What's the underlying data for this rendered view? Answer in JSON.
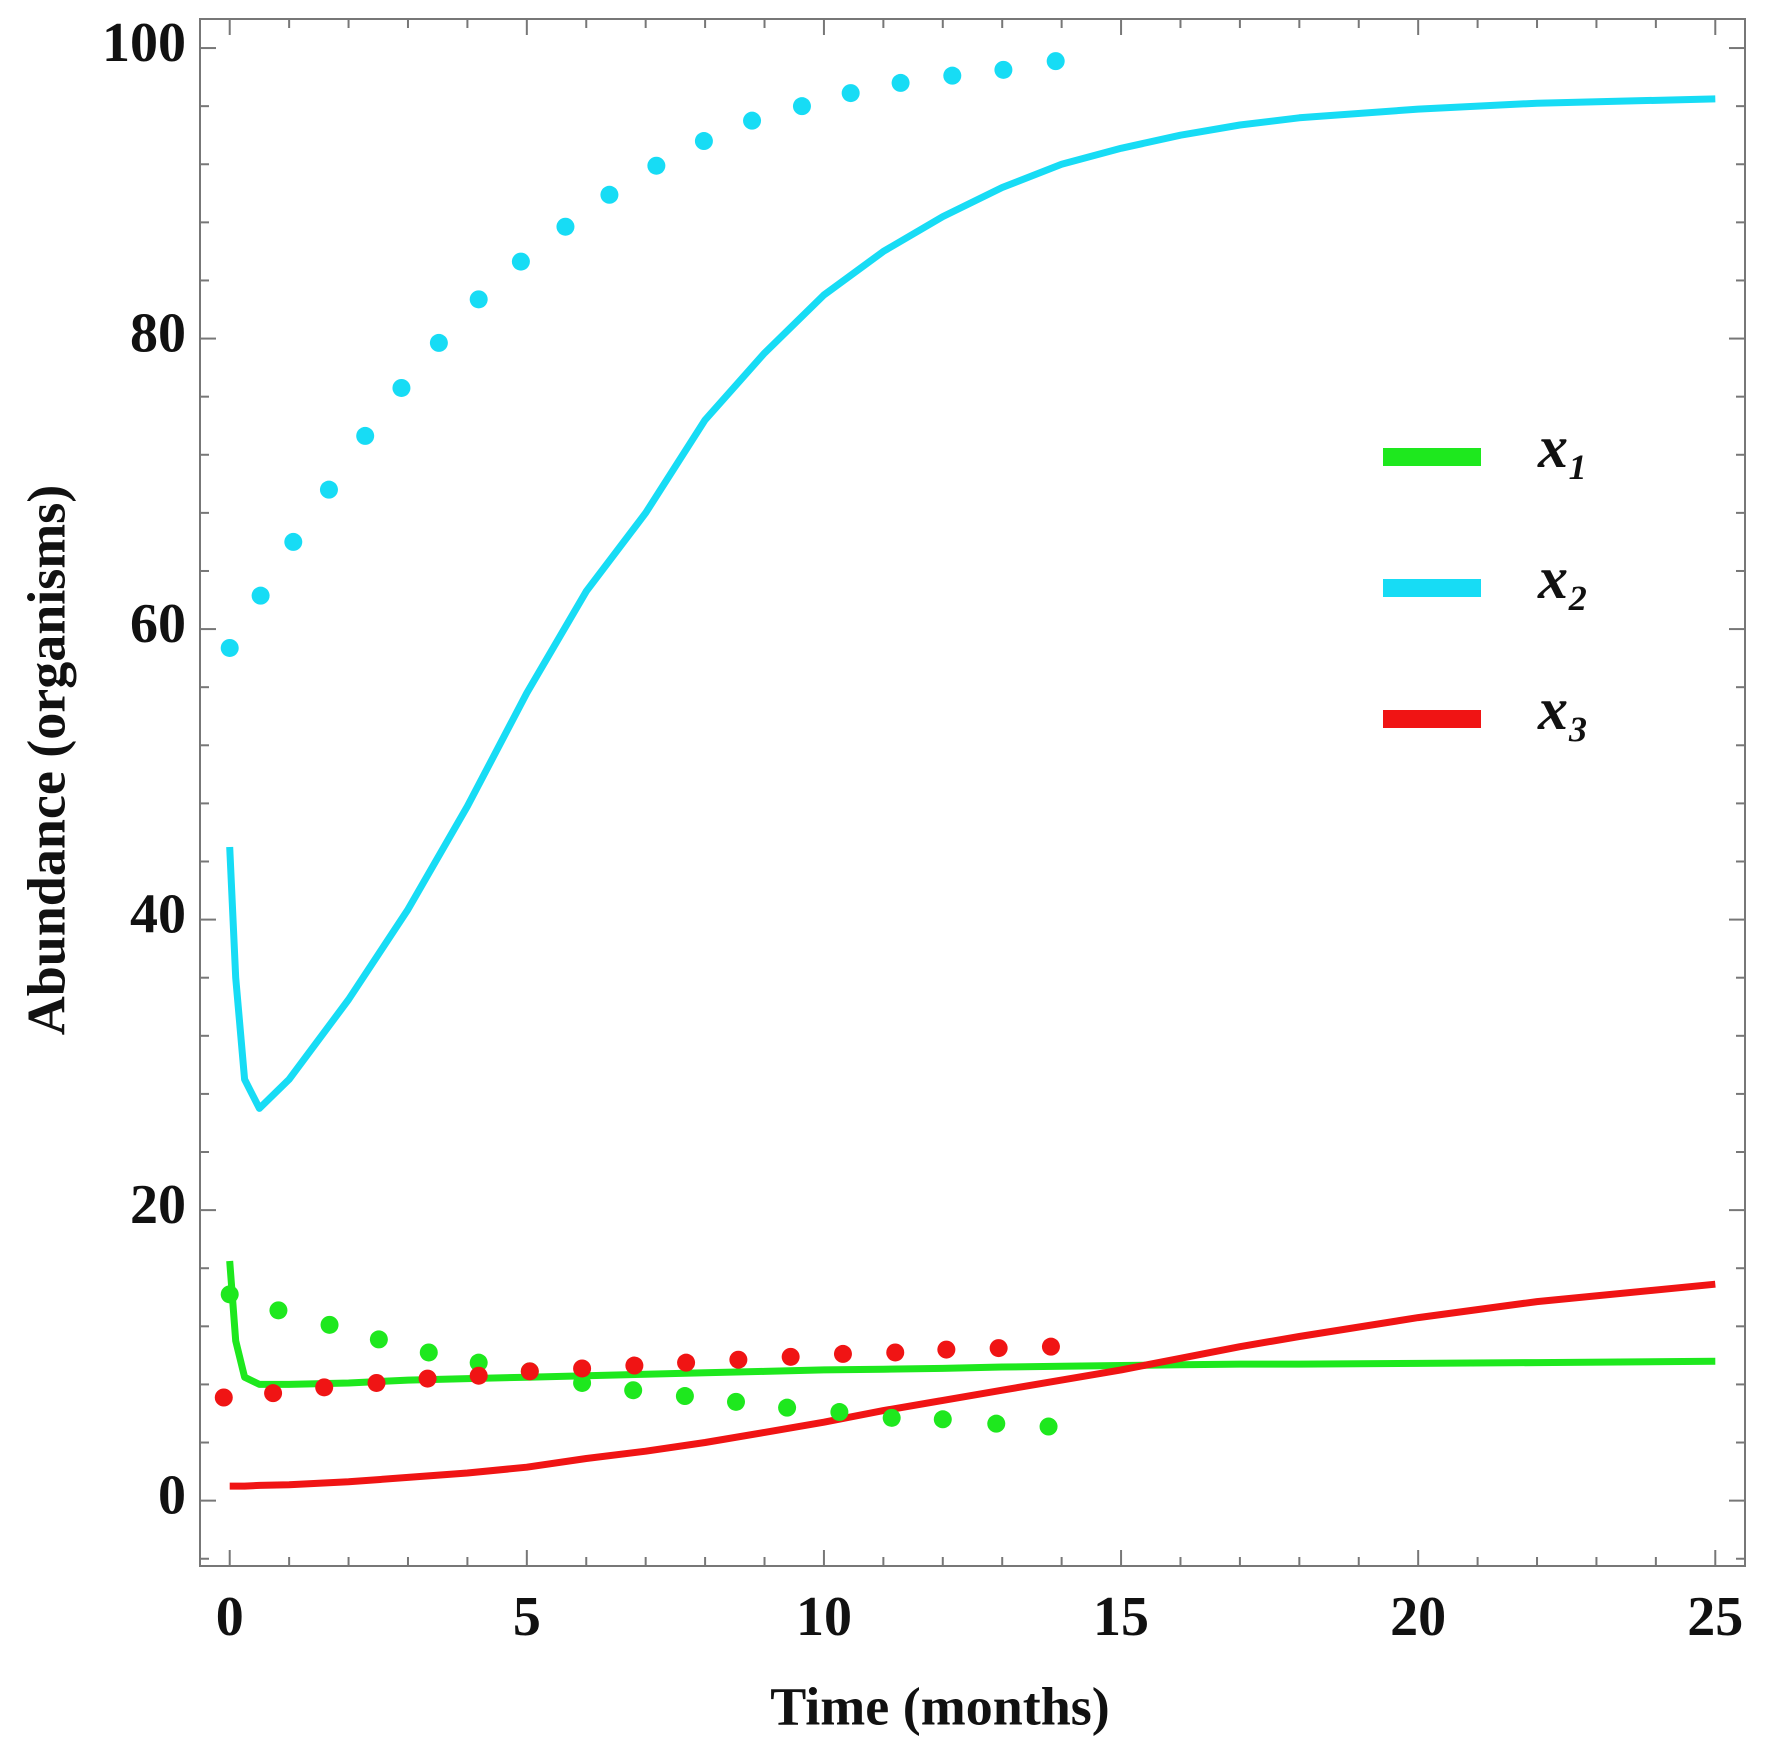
{
  "chart_data": {
    "type": "line",
    "x_label": "Time (months)",
    "y_label": "Abundance (organisms)",
    "xlim": [
      -0.5,
      25.5
    ],
    "ylim": [
      -4.5,
      102
    ],
    "xticks": [
      0,
      5,
      10,
      15,
      20,
      25
    ],
    "yticks": [
      0,
      20,
      40,
      60,
      80,
      100
    ],
    "legend": "right",
    "x": [
      0,
      0.1,
      0.25,
      0.5,
      1,
      2,
      3,
      4,
      5,
      6,
      7,
      8,
      9,
      10,
      11,
      12,
      13,
      14,
      15,
      16,
      17,
      18,
      20,
      22,
      25
    ],
    "series": [
      {
        "name": "x₁",
        "color": "#1ee81e",
        "values": [
          16.5,
          11,
          8.5,
          8,
          8,
          8.1,
          8.3,
          8.4,
          8.5,
          8.6,
          8.7,
          8.8,
          8.9,
          9,
          9.05,
          9.1,
          9.2,
          9.25,
          9.3,
          9.35,
          9.4,
          9.4,
          9.45,
          9.5,
          9.6
        ]
      },
      {
        "name": "x₂",
        "color": "#17dcf5",
        "values": [
          45,
          36,
          29,
          27,
          29,
          34.5,
          40.7,
          47.8,
          55.6,
          62.6,
          68,
          74.4,
          79,
          83,
          86,
          88.4,
          90.4,
          92,
          93.1,
          94,
          94.7,
          95.2,
          95.8,
          96.2,
          96.5
        ]
      },
      {
        "name": "x₃",
        "color": "#f01414",
        "values": [
          1,
          1,
          1,
          1.05,
          1.1,
          1.3,
          1.6,
          1.9,
          2.3,
          2.9,
          3.4,
          4,
          4.7,
          5.4,
          6.2,
          6.9,
          7.6,
          8.3,
          9,
          9.8,
          10.6,
          11.3,
          12.6,
          13.7,
          14.9
        ]
      },
      {
        "marker": "dot",
        "color": "#1ee81e",
        "x": [
          0,
          0.82,
          1.68,
          2.51,
          3.35,
          4.19,
          5.05,
          5.93,
          6.79,
          7.66,
          8.52,
          9.38,
          10.26,
          11.14,
          12.0,
          12.9,
          13.78
        ],
        "values": [
          14.2,
          13.1,
          12.1,
          11.1,
          10.2,
          9.5,
          8.9,
          8.1,
          7.6,
          7.2,
          6.8,
          6.4,
          6.1,
          5.7,
          5.6,
          5.3,
          5.1
        ]
      },
      {
        "marker": "dot",
        "color": "#17dcf5",
        "x": [
          0,
          0.52,
          1.07,
          1.67,
          2.28,
          2.89,
          3.52,
          4.19,
          4.9,
          5.65,
          6.39,
          7.18,
          7.98,
          8.79,
          9.63,
          10.45,
          11.29,
          12.16,
          13.02,
          13.9
        ],
        "values": [
          58.7,
          62.3,
          66,
          69.6,
          73.3,
          76.6,
          79.7,
          82.7,
          85.3,
          87.7,
          89.9,
          91.9,
          93.6,
          95,
          96,
          96.9,
          97.6,
          98.1,
          98.5,
          99.1
        ]
      },
      {
        "marker": "dot",
        "color": "#f01414",
        "x": [
          -0.1,
          0.73,
          1.59,
          2.47,
          3.33,
          4.19,
          5.05,
          5.93,
          6.81,
          7.68,
          8.56,
          9.44,
          10.32,
          11.2,
          12.06,
          12.94,
          13.82
        ],
        "values": [
          7.1,
          7.4,
          7.8,
          8.1,
          8.4,
          8.6,
          8.9,
          9.1,
          9.3,
          9.5,
          9.7,
          9.9,
          10.1,
          10.2,
          10.4,
          10.5,
          10.6
        ]
      }
    ]
  }
}
